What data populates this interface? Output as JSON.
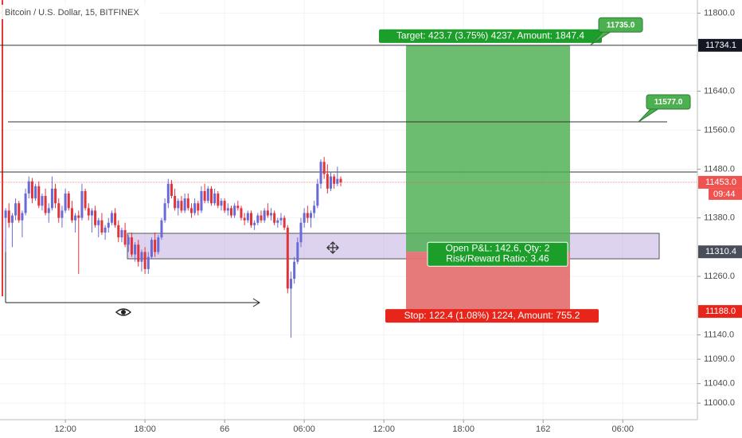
{
  "chart_data": {
    "type": "candlestick",
    "title": "Bitcoin / U.S. Dollar, 15, BITFINEX",
    "up_color": "#6a6ad6",
    "down_color": "#e0343a",
    "grid": true,
    "ylim": [
      10966,
      11827
    ],
    "yticks": [
      {
        "value": 11800,
        "label": "11800.0"
      },
      {
        "value": 11640,
        "label": "11640.0"
      },
      {
        "value": 11560,
        "label": "11560.0"
      },
      {
        "value": 11480,
        "label": "11480.0"
      },
      {
        "value": 11380,
        "label": "11380.0"
      },
      {
        "value": 11260,
        "label": "11260.0"
      },
      {
        "value": 11140,
        "label": "11140.0"
      },
      {
        "value": 11090,
        "label": "11090.0"
      },
      {
        "value": 11040,
        "label": "11040.0"
      },
      {
        "value": 11000,
        "label": "11000.0"
      }
    ],
    "xlim": [
      -1.7,
      208.5
    ],
    "xticks": [
      {
        "value": 18,
        "label": "12:00"
      },
      {
        "value": 42,
        "label": "18:00"
      },
      66,
      {
        "value": 90,
        "label": "06:00"
      },
      {
        "value": 114,
        "label": "12:00"
      },
      {
        "value": 138,
        "label": "18:00"
      },
      162,
      {
        "value": 186,
        "label": "06:00"
      }
    ],
    "last_price": {
      "value": 11453,
      "label": "11453.0",
      "countdown": "09:44"
    },
    "position": {
      "target": {
        "value": 11734.1,
        "label": "11734.1"
      },
      "entry": {
        "value": 11310.4,
        "label": "11310.4"
      },
      "stop": {
        "value": 11188,
        "label": "11188.0"
      },
      "target_text": "Target: 423.7 (3.75%) 4237, Amount: 1847.4",
      "pnl_text": "Open P&L: 142.6, Qty: 2",
      "rr_text": "Risk/Reward Ratio: 3.46",
      "stop_text": "Stop: 122.4 (1.08%) 1224, Amount: 755.2"
    },
    "callouts": [
      {
        "value": 11735,
        "label": "11735.0"
      },
      {
        "value": 11577,
        "label": "11577.0"
      }
    ],
    "ohlc": [
      [
        11380,
        11400,
        11310,
        11395
      ],
      [
        11395,
        11410,
        11360,
        11370
      ],
      [
        11370,
        11390,
        11320,
        11385
      ],
      [
        11385,
        11420,
        11375,
        11410
      ],
      [
        11410,
        11415,
        11370,
        11375
      ],
      [
        11375,
        11395,
        11340,
        11390
      ],
      [
        11390,
        11440,
        11385,
        11430
      ],
      [
        11430,
        11465,
        11420,
        11455
      ],
      [
        11455,
        11462,
        11410,
        11420
      ],
      [
        11420,
        11450,
        11415,
        11445
      ],
      [
        11445,
        11455,
        11400,
        11405
      ],
      [
        11405,
        11430,
        11395,
        11425
      ],
      [
        11425,
        11440,
        11385,
        11390
      ],
      [
        11390,
        11410,
        11370,
        11400
      ],
      [
        11400,
        11465,
        11395,
        11440
      ],
      [
        11440,
        11450,
        11400,
        11410
      ],
      [
        11410,
        11420,
        11370,
        11380
      ],
      [
        11380,
        11405,
        11360,
        11395
      ],
      [
        11395,
        11440,
        11390,
        11430
      ],
      [
        11430,
        11435,
        11395,
        11400
      ],
      [
        11400,
        11415,
        11370,
        11375
      ],
      [
        11375,
        11390,
        11350,
        11385
      ],
      [
        11385,
        11395,
        11265,
        11380
      ],
      [
        11380,
        11450,
        11375,
        11435
      ],
      [
        11435,
        11440,
        11395,
        11400
      ],
      [
        11400,
        11410,
        11375,
        11385
      ],
      [
        11385,
        11400,
        11350,
        11395
      ],
      [
        11395,
        11405,
        11360,
        11365
      ],
      [
        11365,
        11380,
        11340,
        11375
      ],
      [
        11375,
        11390,
        11345,
        11350
      ],
      [
        11350,
        11365,
        11335,
        11360
      ],
      [
        11360,
        11380,
        11350,
        11370
      ],
      [
        11370,
        11395,
        11365,
        11390
      ],
      [
        11390,
        11400,
        11360,
        11365
      ],
      [
        11365,
        11375,
        11330,
        11340
      ],
      [
        11340,
        11360,
        11330,
        11355
      ],
      [
        11355,
        11370,
        11320,
        11325
      ],
      [
        11325,
        11345,
        11310,
        11340
      ],
      [
        11340,
        11350,
        11300,
        11305
      ],
      [
        11305,
        11330,
        11290,
        11325
      ],
      [
        11325,
        11335,
        11280,
        11290
      ],
      [
        11290,
        11315,
        11270,
        11310
      ],
      [
        11310,
        11320,
        11265,
        11275
      ],
      [
        11275,
        11310,
        11265,
        11300
      ],
      [
        11300,
        11340,
        11295,
        11335
      ],
      [
        11335,
        11350,
        11300,
        11310
      ],
      [
        11310,
        11345,
        11305,
        11340
      ],
      [
        11340,
        11380,
        11335,
        11375
      ],
      [
        11375,
        11420,
        11370,
        11410
      ],
      [
        11410,
        11460,
        11400,
        11450
      ],
      [
        11450,
        11458,
        11420,
        11425
      ],
      [
        11425,
        11440,
        11395,
        11400
      ],
      [
        11400,
        11420,
        11385,
        11415
      ],
      [
        11415,
        11425,
        11390,
        11395
      ],
      [
        11395,
        11430,
        11390,
        11420
      ],
      [
        11420,
        11430,
        11395,
        11400
      ],
      [
        11400,
        11410,
        11380,
        11390
      ],
      [
        11390,
        11420,
        11385,
        11410
      ],
      [
        11410,
        11415,
        11385,
        11395
      ],
      [
        11395,
        11445,
        11390,
        11435
      ],
      [
        11435,
        11450,
        11410,
        11415
      ],
      [
        11415,
        11445,
        11410,
        11440
      ],
      [
        11440,
        11445,
        11405,
        11410
      ],
      [
        11410,
        11440,
        11405,
        11430
      ],
      [
        11430,
        11435,
        11400,
        11405
      ],
      [
        11405,
        11420,
        11395,
        11415
      ],
      [
        11415,
        11420,
        11390,
        11395
      ],
      [
        11395,
        11410,
        11385,
        11400
      ],
      [
        11400,
        11405,
        11380,
        11385
      ],
      [
        11385,
        11410,
        11380,
        11405
      ],
      [
        11405,
        11415,
        11395,
        11400
      ],
      [
        11400,
        11405,
        11375,
        11380
      ],
      [
        11380,
        11390,
        11365,
        11375
      ],
      [
        11375,
        11395,
        11370,
        11390
      ],
      [
        11390,
        11395,
        11360,
        11365
      ],
      [
        11365,
        11375,
        11355,
        11370
      ],
      [
        11370,
        11390,
        11365,
        11385
      ],
      [
        11385,
        11395,
        11370,
        11375
      ],
      [
        11375,
        11400,
        11370,
        11395
      ],
      [
        11395,
        11410,
        11380,
        11385
      ],
      [
        11385,
        11400,
        11375,
        11390
      ],
      [
        11390,
        11395,
        11365,
        11370
      ],
      [
        11370,
        11380,
        11360,
        11375
      ],
      [
        11375,
        11390,
        11365,
        11380
      ],
      [
        11380,
        11385,
        11355,
        11360
      ],
      [
        11360,
        11365,
        11225,
        11235
      ],
      [
        11235,
        11270,
        11134,
        11255
      ],
      [
        11255,
        11300,
        11245,
        11290
      ],
      [
        11290,
        11340,
        11285,
        11330
      ],
      [
        11330,
        11380,
        11320,
        11370
      ],
      [
        11370,
        11400,
        11360,
        11390
      ],
      [
        11390,
        11405,
        11370,
        11380
      ],
      [
        11380,
        11395,
        11360,
        11390
      ],
      [
        11390,
        11415,
        11380,
        11405
      ],
      [
        11405,
        11460,
        11400,
        11450
      ],
      [
        11450,
        11500,
        11440,
        11495
      ],
      [
        11495,
        11505,
        11460,
        11470
      ],
      [
        11470,
        11490,
        11430,
        11440
      ],
      [
        11440,
        11475,
        11435,
        11465
      ],
      [
        11465,
        11470,
        11440,
        11450
      ],
      [
        11450,
        11485,
        11445,
        11460
      ],
      [
        11460,
        11465,
        11445,
        11453
      ]
    ]
  }
}
